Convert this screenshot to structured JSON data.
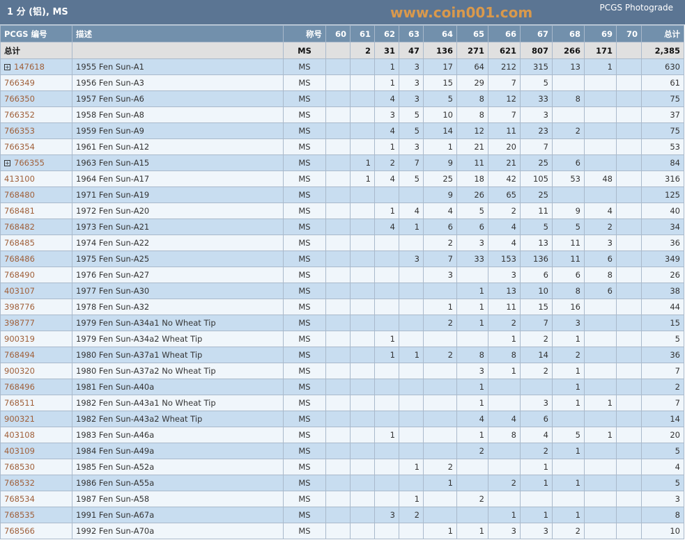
{
  "title": "1 分 (铝), MS",
  "brand": "PCGS Photograde",
  "headers": [
    "PCGS 编号",
    "描述",
    "称号",
    "60",
    "61",
    "62",
    "63",
    "64",
    "65",
    "66",
    "67",
    "68",
    "69",
    "70",
    "总计"
  ],
  "total_row": {
    "label": "总计",
    "desig": "MS",
    "grades": [
      "",
      "2",
      "31",
      "47",
      "136",
      "271",
      "621",
      "807",
      "266",
      "171",
      ""
    ],
    "total": "2,385"
  },
  "rows": [
    {
      "id": "147618",
      "expand": true,
      "desc": "1955 Fen Sun-A1",
      "desig": "MS",
      "grades": [
        "",
        "",
        "1",
        "3",
        "17",
        "64",
        "212",
        "315",
        "13",
        "1",
        ""
      ],
      "total": "630"
    },
    {
      "id": "766349",
      "desc": "1956 Fen Sun-A3",
      "desig": "MS",
      "grades": [
        "",
        "",
        "1",
        "3",
        "15",
        "29",
        "7",
        "5",
        "",
        "",
        ""
      ],
      "total": "61"
    },
    {
      "id": "766350",
      "desc": "1957 Fen Sun-A6",
      "desig": "MS",
      "grades": [
        "",
        "",
        "4",
        "3",
        "5",
        "8",
        "12",
        "33",
        "8",
        "",
        ""
      ],
      "total": "75"
    },
    {
      "id": "766352",
      "desc": "1958 Fen Sun-A8",
      "desig": "MS",
      "grades": [
        "",
        "",
        "3",
        "5",
        "10",
        "8",
        "7",
        "3",
        "",
        "",
        ""
      ],
      "total": "37"
    },
    {
      "id": "766353",
      "desc": "1959 Fen Sun-A9",
      "desig": "MS",
      "grades": [
        "",
        "",
        "4",
        "5",
        "14",
        "12",
        "11",
        "23",
        "2",
        "",
        ""
      ],
      "total": "75"
    },
    {
      "id": "766354",
      "desc": "1961 Fen Sun-A12",
      "desig": "MS",
      "grades": [
        "",
        "",
        "1",
        "3",
        "1",
        "21",
        "20",
        "7",
        "",
        "",
        ""
      ],
      "total": "53"
    },
    {
      "id": "766355",
      "expand": true,
      "desc": "1963 Fen Sun-A15",
      "desig": "MS",
      "grades": [
        "",
        "1",
        "2",
        "7",
        "9",
        "11",
        "21",
        "25",
        "6",
        "",
        ""
      ],
      "total": "84"
    },
    {
      "id": "413100",
      "desc": "1964 Fen Sun-A17",
      "desig": "MS",
      "grades": [
        "",
        "1",
        "4",
        "5",
        "25",
        "18",
        "42",
        "105",
        "53",
        "48",
        ""
      ],
      "total": "316"
    },
    {
      "id": "768480",
      "desc": "1971 Fen Sun-A19",
      "desig": "MS",
      "grades": [
        "",
        "",
        "",
        "",
        "9",
        "26",
        "65",
        "25",
        "",
        "",
        ""
      ],
      "total": "125"
    },
    {
      "id": "768481",
      "desc": "1972 Fen Sun-A20",
      "desig": "MS",
      "grades": [
        "",
        "",
        "1",
        "4",
        "4",
        "5",
        "2",
        "11",
        "9",
        "4",
        ""
      ],
      "total": "40"
    },
    {
      "id": "768482",
      "desc": "1973 Fen Sun-A21",
      "desig": "MS",
      "grades": [
        "",
        "",
        "4",
        "1",
        "6",
        "6",
        "4",
        "5",
        "5",
        "2",
        ""
      ],
      "total": "34"
    },
    {
      "id": "768485",
      "desc": "1974 Fen Sun-A22",
      "desig": "MS",
      "grades": [
        "",
        "",
        "",
        "",
        "2",
        "3",
        "4",
        "13",
        "11",
        "3",
        ""
      ],
      "total": "36"
    },
    {
      "id": "768486",
      "desc": "1975 Fen Sun-A25",
      "desig": "MS",
      "grades": [
        "",
        "",
        "",
        "3",
        "7",
        "33",
        "153",
        "136",
        "11",
        "6",
        ""
      ],
      "total": "349"
    },
    {
      "id": "768490",
      "desc": "1976 Fen Sun-A27",
      "desig": "MS",
      "grades": [
        "",
        "",
        "",
        "",
        "3",
        "",
        "3",
        "6",
        "6",
        "8",
        ""
      ],
      "total": "26"
    },
    {
      "id": "403107",
      "desc": "1977 Fen Sun-A30",
      "desig": "MS",
      "grades": [
        "",
        "",
        "",
        "",
        "",
        "1",
        "13",
        "10",
        "8",
        "6",
        ""
      ],
      "total": "38"
    },
    {
      "id": "398776",
      "desc": "1978 Fen Sun-A32",
      "desig": "MS",
      "grades": [
        "",
        "",
        "",
        "",
        "1",
        "1",
        "11",
        "15",
        "16",
        "",
        ""
      ],
      "total": "44"
    },
    {
      "id": "398777",
      "desc": "1979 Fen Sun-A34a1 No Wheat Tip",
      "desig": "MS",
      "grades": [
        "",
        "",
        "",
        "",
        "2",
        "1",
        "2",
        "7",
        "3",
        "",
        ""
      ],
      "total": "15"
    },
    {
      "id": "900319",
      "desc": "1979 Fen Sun-A34a2 Wheat Tip",
      "desig": "MS",
      "grades": [
        "",
        "",
        "1",
        "",
        "",
        "",
        "1",
        "2",
        "1",
        "",
        ""
      ],
      "total": "5"
    },
    {
      "id": "768494",
      "desc": "1980 Fen Sun-A37a1 Wheat Tip",
      "desig": "MS",
      "grades": [
        "",
        "",
        "1",
        "1",
        "2",
        "8",
        "8",
        "14",
        "2",
        "",
        ""
      ],
      "total": "36"
    },
    {
      "id": "900320",
      "desc": "1980 Fen Sun-A37a2 No Wheat Tip",
      "desig": "MS",
      "grades": [
        "",
        "",
        "",
        "",
        "",
        "3",
        "1",
        "2",
        "1",
        "",
        ""
      ],
      "total": "7"
    },
    {
      "id": "768496",
      "desc": "1981 Fen Sun-A40a",
      "desig": "MS",
      "grades": [
        "",
        "",
        "",
        "",
        "",
        "1",
        "",
        "",
        "1",
        "",
        ""
      ],
      "total": "2"
    },
    {
      "id": "768511",
      "desc": "1982 Fen Sun-A43a1 No Wheat Tip",
      "desig": "MS",
      "grades": [
        "",
        "",
        "",
        "",
        "",
        "1",
        "",
        "3",
        "1",
        "1",
        ""
      ],
      "total": "7"
    },
    {
      "id": "900321",
      "desc": "1982 Fen Sun-A43a2 Wheat Tip",
      "desig": "MS",
      "grades": [
        "",
        "",
        "",
        "",
        "",
        "4",
        "4",
        "6",
        "",
        "",
        ""
      ],
      "total": "14"
    },
    {
      "id": "403108",
      "desc": "1983 Fen Sun-A46a",
      "desig": "MS",
      "grades": [
        "",
        "",
        "1",
        "",
        "",
        "1",
        "8",
        "4",
        "5",
        "1",
        ""
      ],
      "total": "20"
    },
    {
      "id": "403109",
      "desc": "1984 Fen Sun-A49a",
      "desig": "MS",
      "grades": [
        "",
        "",
        "",
        "",
        "",
        "2",
        "",
        "2",
        "1",
        "",
        ""
      ],
      "total": "5"
    },
    {
      "id": "768530",
      "desc": "1985 Fen Sun-A52a",
      "desig": "MS",
      "grades": [
        "",
        "",
        "",
        "1",
        "2",
        "",
        "",
        "1",
        "",
        "",
        ""
      ],
      "total": "4"
    },
    {
      "id": "768532",
      "desc": "1986 Fen Sun-A55a",
      "desig": "MS",
      "grades": [
        "",
        "",
        "",
        "",
        "1",
        "",
        "2",
        "1",
        "1",
        "",
        ""
      ],
      "total": "5"
    },
    {
      "id": "768534",
      "desc": "1987 Fen Sun-A58",
      "desig": "MS",
      "grades": [
        "",
        "",
        "",
        "1",
        "",
        "2",
        "",
        "",
        "",
        "",
        ""
      ],
      "total": "3"
    },
    {
      "id": "768535",
      "desc": "1991 Fen Sun-A67a",
      "desig": "MS",
      "grades": [
        "",
        "",
        "3",
        "2",
        "",
        "",
        "1",
        "1",
        "1",
        "",
        ""
      ],
      "total": "8"
    },
    {
      "id": "768566",
      "desc": "1992 Fen Sun-A70a",
      "desig": "MS",
      "grades": [
        "",
        "",
        "",
        "",
        "1",
        "1",
        "3",
        "3",
        "2",
        "",
        ""
      ],
      "total": "10"
    }
  ],
  "watermark": "www.coin001.com"
}
